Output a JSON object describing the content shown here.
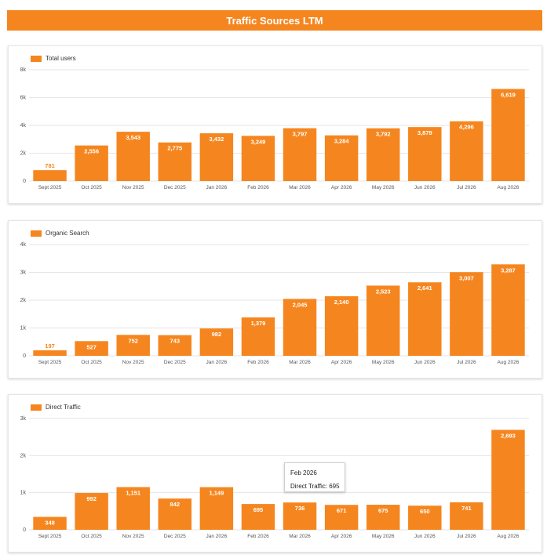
{
  "header": {
    "title": "Traffic Sources LTM"
  },
  "colors": {
    "bar": "#f5861f",
    "grid": "#e5e5e5",
    "axis_text": "#555555",
    "label_text": "#ffffff"
  },
  "tooltip": {
    "title": "Feb 2026",
    "label": "Direct Traffic",
    "value": "695"
  },
  "chart_data": [
    {
      "type": "bar",
      "legend": "Total users",
      "legend_position": "top-left",
      "grid": true,
      "categories": [
        "Sept 2025",
        "Oct 2025",
        "Nov 2025",
        "Dec 2025",
        "Jan 2026",
        "Feb 2026",
        "Mar 2026",
        "Apr 2026",
        "May 2026",
        "Jun 2026",
        "Jul 2026",
        "Aug 2026"
      ],
      "series": [
        {
          "name": "Total users",
          "values": [
            781,
            2556,
            3543,
            2775,
            3432,
            3249,
            3797,
            3284,
            3792,
            3879,
            4296,
            6619
          ]
        }
      ],
      "labels": [
        "781",
        "2,556",
        "3,543",
        "2,775",
        "3,432",
        "3,249",
        "3,797",
        "3,284",
        "3,792",
        "3,879",
        "4,296",
        "6,619"
      ],
      "ylim": [
        0,
        8000
      ],
      "yticks": [
        0,
        2000,
        4000,
        6000,
        8000
      ],
      "ytick_labels": [
        "0",
        "2k",
        "4k",
        "6k",
        "8k"
      ]
    },
    {
      "type": "bar",
      "legend": "Organic Search",
      "legend_position": "top-left",
      "grid": true,
      "categories": [
        "Sept 2025",
        "Oct 2025",
        "Nov 2025",
        "Dec 2025",
        "Jan 2026",
        "Feb 2026",
        "Mar 2026",
        "Apr 2026",
        "May 2026",
        "Jun 2026",
        "Jul 2026",
        "Aug 2026"
      ],
      "series": [
        {
          "name": "Organic Search",
          "values": [
            197,
            527,
            752,
            743,
            982,
            1379,
            2045,
            2140,
            2523,
            2641,
            3007,
            3287
          ]
        }
      ],
      "labels": [
        "197",
        "527",
        "752",
        "743",
        "982",
        "1,379",
        "2,045",
        "2,140",
        "2,523",
        "2,641",
        "3,007",
        "3,287"
      ],
      "ylim": [
        0,
        4000
      ],
      "yticks": [
        0,
        1000,
        2000,
        3000,
        4000
      ],
      "ytick_labels": [
        "0",
        "1k",
        "2k",
        "3k",
        "4k"
      ]
    },
    {
      "type": "bar",
      "legend": "Direct Traffic",
      "legend_position": "top-left",
      "grid": true,
      "categories": [
        "Sept 2025",
        "Oct 2025",
        "Nov 2025",
        "Dec 2025",
        "Jan 2026",
        "Feb 2026",
        "Mar 2026",
        "Apr 2026",
        "May 2026",
        "Jun 2026",
        "Jul 2026",
        "Aug 2026"
      ],
      "series": [
        {
          "name": "Direct Traffic",
          "values": [
            348,
            992,
            1151,
            842,
            1149,
            695,
            736,
            671,
            675,
            650,
            741,
            2693
          ]
        }
      ],
      "labels": [
        "348",
        "992",
        "1,151",
        "842",
        "1,149",
        "695",
        "736",
        "671",
        "675",
        "650",
        "741",
        "2,693"
      ],
      "ylim": [
        0,
        3000
      ],
      "yticks": [
        0,
        1000,
        2000,
        3000
      ],
      "ytick_labels": [
        "0",
        "1k",
        "2k",
        "3k"
      ]
    }
  ]
}
